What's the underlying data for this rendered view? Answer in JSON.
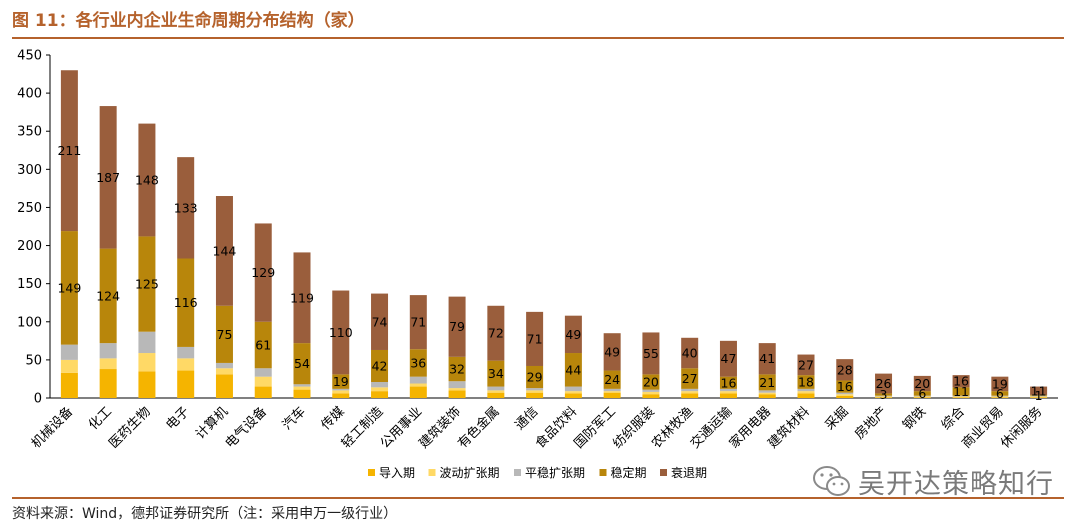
{
  "header": {
    "title": "图 11：各行业内企业生命周期分布结构（家）"
  },
  "footer": {
    "source": "资料来源：Wind，德邦证券研究所（注：采用申万一级行业）",
    "watermark": "吴开达策略知行"
  },
  "colors": {
    "brand": "#b5622c",
    "series": [
      "#f5b400",
      "#ffd966",
      "#b8b8b8",
      "#b8860b",
      "#9a5e3c"
    ]
  },
  "chart_data": {
    "type": "bar",
    "stacked": true,
    "ylim": [
      0,
      450
    ],
    "yticks": [
      0,
      50,
      100,
      150,
      200,
      250,
      300,
      350,
      400,
      450
    ],
    "legend_position": "bottom",
    "categories": [
      "机械设备",
      "化工",
      "医药生物",
      "电子",
      "计算机",
      "电气设备",
      "汽车",
      "传媒",
      "轻工制造",
      "公用事业",
      "建筑装饰",
      "有色金属",
      "通信",
      "食品饮料",
      "国防军工",
      "纺织服装",
      "农林牧渔",
      "交通运输",
      "家用电器",
      "建筑材料",
      "采掘",
      "房地产",
      "钢铁",
      "综合",
      "商业贸易",
      "休闲服务"
    ],
    "series": [
      {
        "name": "导入期",
        "values": [
          33,
          38,
          35,
          36,
          31,
          15,
          11,
          6,
          9,
          15,
          10,
          7,
          7,
          6,
          7,
          5,
          6,
          6,
          5,
          6,
          3,
          1,
          1,
          1,
          1,
          1
        ]
      },
      {
        "name": "波动扩张期",
        "values": [
          17,
          14,
          24,
          16,
          8,
          13,
          4,
          4,
          5,
          4,
          3,
          3,
          3,
          3,
          2,
          3,
          3,
          3,
          2,
          3,
          2,
          1,
          1,
          1,
          1,
          1
        ]
      },
      {
        "name": "平稳扩张期",
        "values": [
          20,
          20,
          28,
          15,
          7,
          11,
          3,
          2,
          7,
          9,
          9,
          5,
          3,
          6,
          3,
          3,
          3,
          3,
          3,
          3,
          2,
          1,
          1,
          1,
          1,
          1
        ]
      },
      {
        "name": "稳定期",
        "values": [
          149,
          124,
          125,
          116,
          75,
          61,
          54,
          19,
          42,
          36,
          32,
          34,
          29,
          44,
          24,
          20,
          27,
          16,
          21,
          18,
          16,
          3,
          6,
          11,
          6,
          1
        ]
      },
      {
        "name": "衰退期",
        "values": [
          211,
          187,
          148,
          133,
          144,
          129,
          119,
          110,
          74,
          71,
          79,
          72,
          71,
          49,
          49,
          55,
          40,
          47,
          41,
          27,
          28,
          26,
          20,
          16,
          19,
          11
        ]
      }
    ],
    "data_labels": {
      "稳定期": [
        149,
        124,
        125,
        116,
        75,
        61,
        54,
        19,
        42,
        36,
        32,
        34,
        29,
        44,
        24,
        20,
        27,
        16,
        21,
        18,
        16,
        3,
        6,
        11,
        6,
        1
      ],
      "衰退期": [
        211,
        187,
        148,
        133,
        144,
        129,
        119,
        110,
        74,
        71,
        79,
        72,
        71,
        49,
        49,
        55,
        40,
        47,
        41,
        27,
        28,
        26,
        20,
        16,
        19,
        11
      ]
    }
  }
}
